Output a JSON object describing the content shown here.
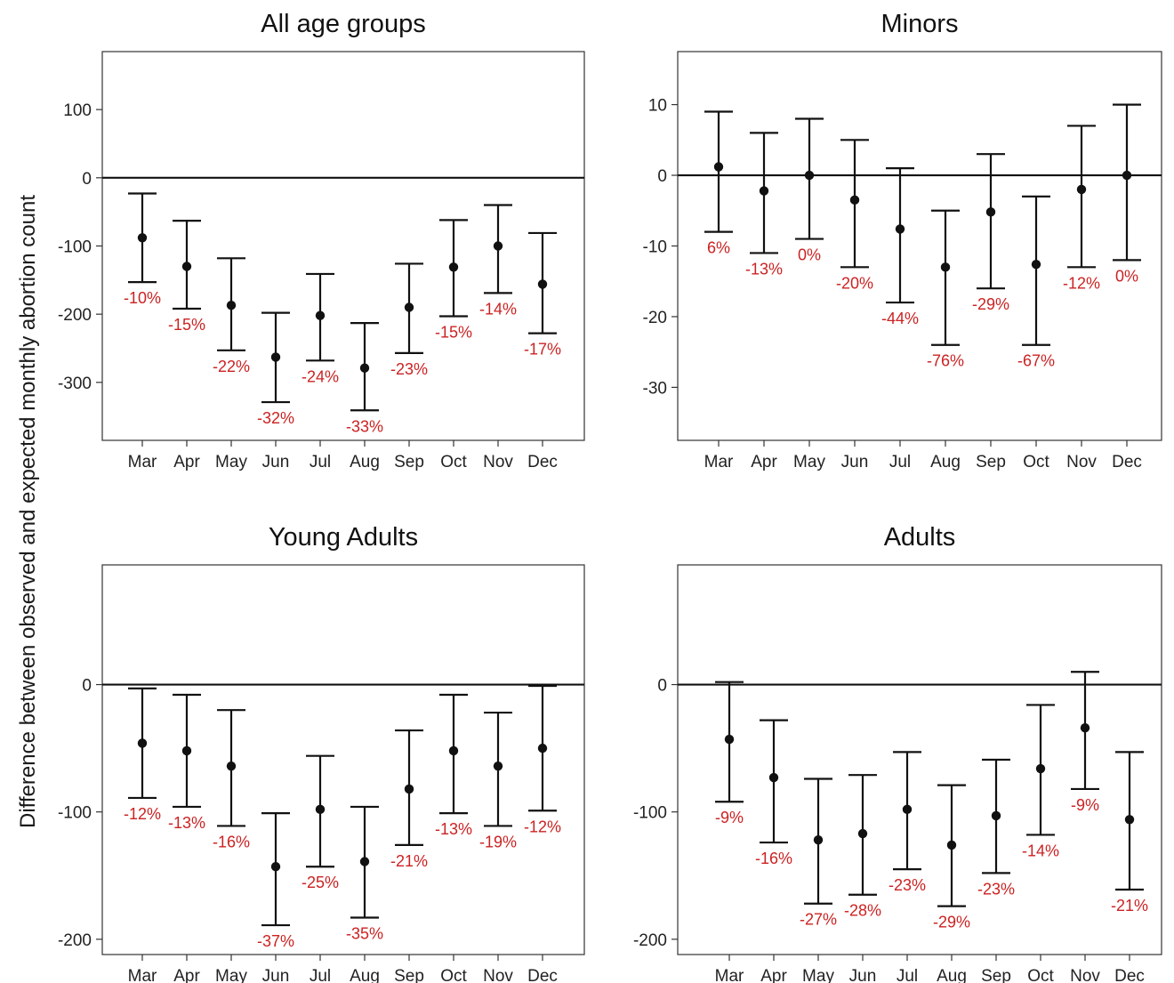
{
  "figure": {
    "ylabel": "Difference between observed and expected monthly abortion count"
  },
  "colors": {
    "annotation": "#cc2222",
    "marks": "#111111",
    "frame": "#333333"
  },
  "chart_data": [
    {
      "type": "scatter",
      "title": "All age groups",
      "xlabel": "",
      "ylabel": "Difference between observed and expected monthly abortion count",
      "categories": [
        "Mar",
        "Apr",
        "May",
        "Jun",
        "Jul",
        "Aug",
        "Sep",
        "Oct",
        "Nov",
        "Dec"
      ],
      "values": [
        -88,
        -130,
        -187,
        -263,
        -202,
        -279,
        -190,
        -131,
        -100,
        -156
      ],
      "lower": [
        -153,
        -192,
        -253,
        -329,
        -268,
        -341,
        -257,
        -203,
        -169,
        -228
      ],
      "upper": [
        -23,
        -63,
        -118,
        -198,
        -141,
        -213,
        -126,
        -62,
        -40,
        -81
      ],
      "annotations": [
        "-10%",
        "-15%",
        "-22%",
        "-32%",
        "-24%",
        "-33%",
        "-23%",
        "-15%",
        "-14%",
        "-17%"
      ],
      "yticks": [
        100,
        0,
        -100,
        -200,
        -300
      ],
      "ylim": [
        -385,
        185
      ],
      "zero_line": true,
      "grid": false,
      "legend": "none"
    },
    {
      "type": "scatter",
      "title": "Minors",
      "xlabel": "",
      "ylabel": "Difference between observed and expected monthly abortion count",
      "categories": [
        "Mar",
        "Apr",
        "May",
        "Jun",
        "Jul",
        "Aug",
        "Sep",
        "Oct",
        "Nov",
        "Dec"
      ],
      "values": [
        1.2,
        -2.2,
        0,
        -3.5,
        -7.6,
        -13,
        -5.2,
        -12.6,
        -2,
        0
      ],
      "lower": [
        -8,
        -11,
        -9,
        -13,
        -18,
        -24,
        -16,
        -24,
        -13,
        -12
      ],
      "upper": [
        9,
        6,
        8,
        5,
        1,
        -5,
        3,
        -3,
        7,
        10
      ],
      "annotations": [
        "6%",
        "-13%",
        "0%",
        "-20%",
        "-44%",
        "-76%",
        "-29%",
        "-67%",
        "-12%",
        "0%"
      ],
      "yticks": [
        10,
        0,
        -10,
        -20,
        -30
      ],
      "ylim": [
        -37.5,
        17.5
      ],
      "zero_line": true,
      "grid": false,
      "legend": "none"
    },
    {
      "type": "scatter",
      "title": "Young Adults",
      "xlabel": "",
      "ylabel": "Difference between observed and expected monthly abortion count",
      "categories": [
        "Mar",
        "Apr",
        "May",
        "Jun",
        "Jul",
        "Aug",
        "Sep",
        "Oct",
        "Nov",
        "Dec"
      ],
      "values": [
        -46,
        -52,
        -64,
        -143,
        -98,
        -139,
        -82,
        -52,
        -64,
        -50
      ],
      "lower": [
        -89,
        -96,
        -111,
        -189,
        -143,
        -183,
        -126,
        -101,
        -111,
        -99
      ],
      "upper": [
        -3,
        -8,
        -20,
        -101,
        -56,
        -96,
        -36,
        -8,
        -22,
        -1
      ],
      "annotations": [
        "-12%",
        "-13%",
        "-16%",
        "-37%",
        "-25%",
        "-35%",
        "-21%",
        "-13%",
        "-19%",
        "-12%"
      ],
      "yticks": [
        0,
        -100,
        -200
      ],
      "ylim": [
        -212,
        94
      ],
      "zero_line": true,
      "grid": false,
      "legend": "none"
    },
    {
      "type": "scatter",
      "title": "Adults",
      "xlabel": "",
      "ylabel": "Difference between observed and expected monthly abortion count",
      "categories": [
        "Mar",
        "Apr",
        "May",
        "Jun",
        "Jul",
        "Aug",
        "Sep",
        "Oct",
        "Nov",
        "Dec"
      ],
      "values": [
        -43,
        -73,
        -122,
        -117,
        -98,
        -126,
        -103,
        -66,
        -34,
        -106
      ],
      "lower": [
        -92,
        -124,
        -172,
        -165,
        -145,
        -174,
        -148,
        -118,
        -82,
        -161
      ],
      "upper": [
        2,
        -28,
        -74,
        -71,
        -53,
        -79,
        -59,
        -16,
        10,
        -53
      ],
      "annotations": [
        "-9%",
        "-16%",
        "-27%",
        "-28%",
        "-23%",
        "-29%",
        "-23%",
        "-14%",
        "-9%",
        "-21%"
      ],
      "yticks": [
        0,
        -100,
        -200
      ],
      "ylim": [
        -212,
        94
      ],
      "zero_line": true,
      "grid": false,
      "legend": "none"
    }
  ]
}
